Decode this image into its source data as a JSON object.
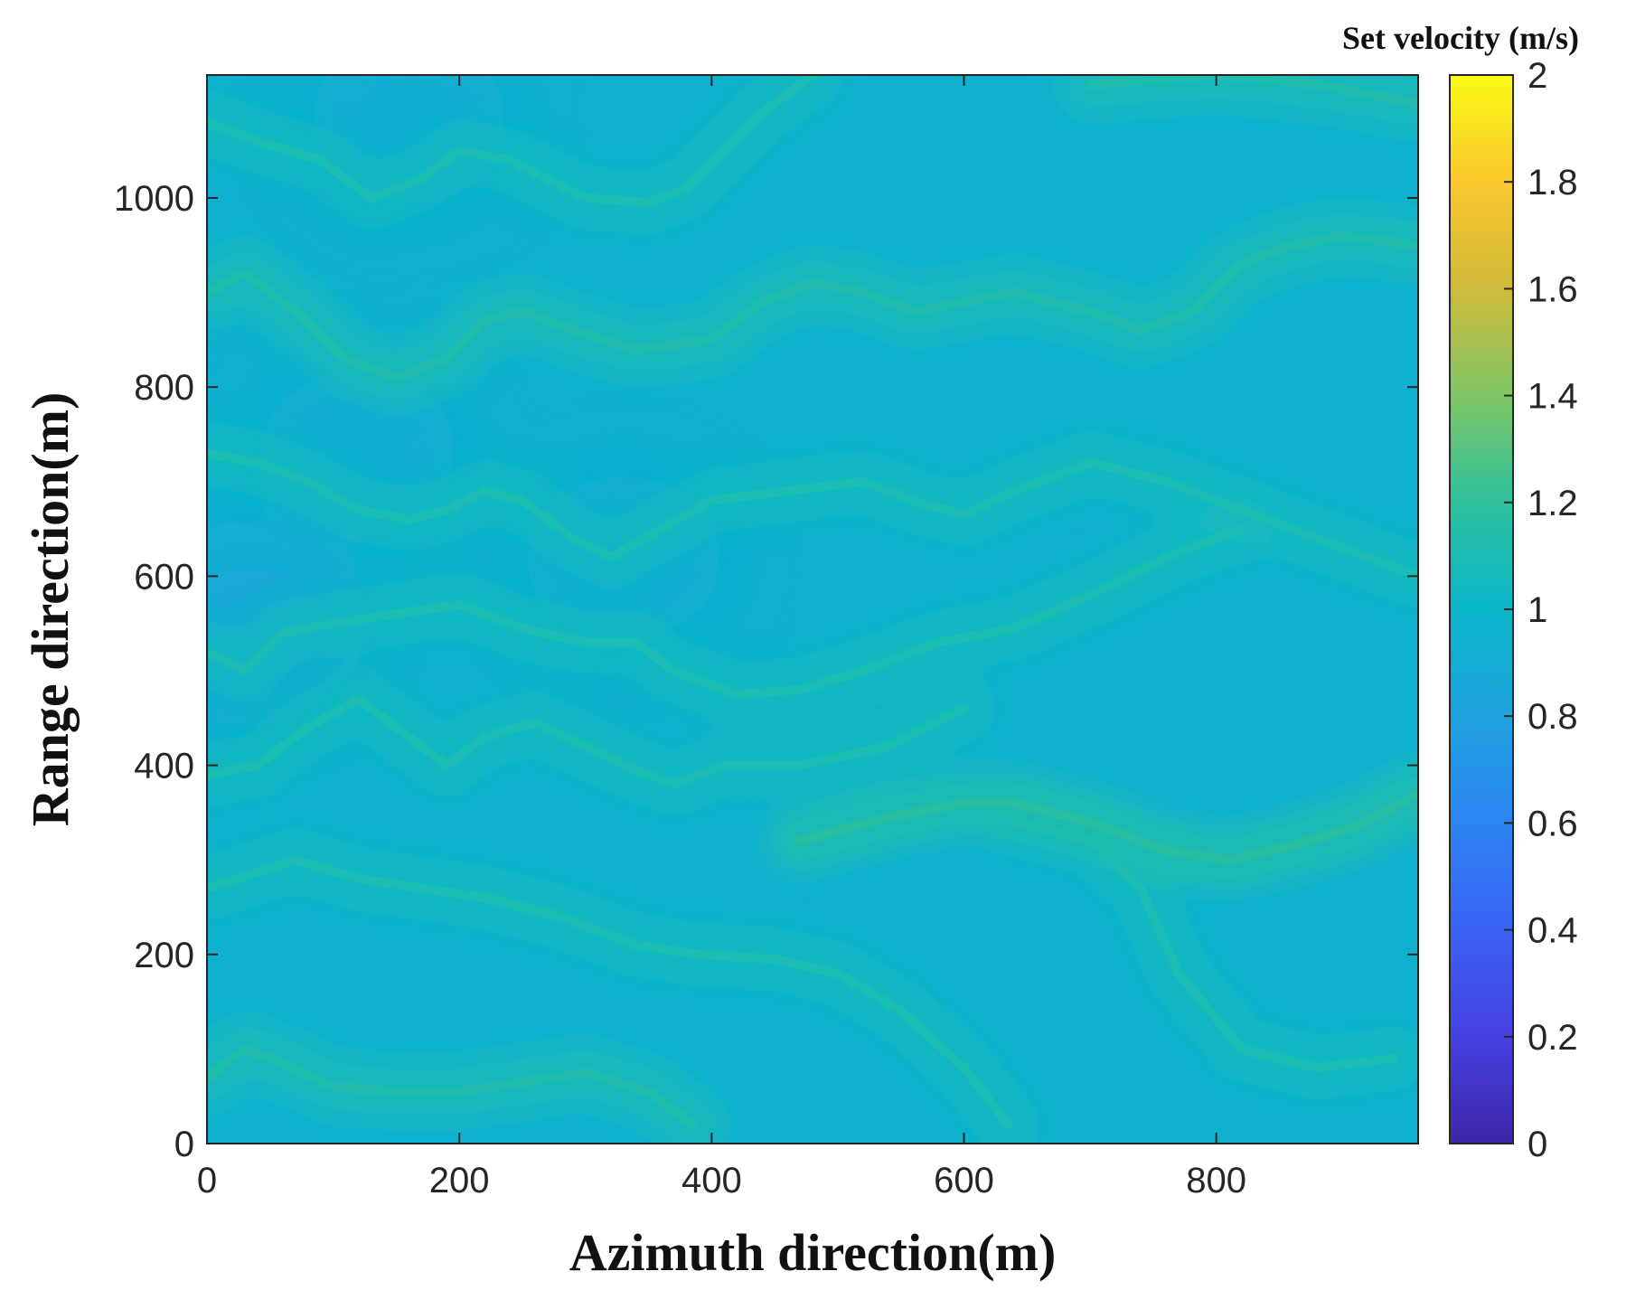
{
  "chart_data": {
    "type": "heatmap",
    "xlabel": "Azimuth direction(m)",
    "ylabel": "Range direction(m)",
    "xlim": [
      0,
      960
    ],
    "ylim": [
      0,
      1130
    ],
    "xticks": [
      {
        "value": 0,
        "label": "0"
      },
      {
        "value": 200,
        "label": "200"
      },
      {
        "value": 400,
        "label": "400"
      },
      {
        "value": 600,
        "label": "600"
      },
      {
        "value": 800,
        "label": "800"
      }
    ],
    "yticks": [
      {
        "value": 0,
        "label": "0"
      },
      {
        "value": 200,
        "label": "200"
      },
      {
        "value": 400,
        "label": "400"
      },
      {
        "value": 600,
        "label": "600"
      },
      {
        "value": 800,
        "label": "800"
      },
      {
        "value": 1000,
        "label": "1000"
      }
    ],
    "colorbar": {
      "title": "Set velocity (m/s)",
      "range": [
        0,
        2
      ],
      "colormap": "parula",
      "ticks": [
        {
          "value": 0,
          "label": "0"
        },
        {
          "value": 0.2,
          "label": "0.2"
        },
        {
          "value": 0.4,
          "label": "0.4"
        },
        {
          "value": 0.6,
          "label": "0.6"
        },
        {
          "value": 0.8,
          "label": "0.8"
        },
        {
          "value": 1,
          "label": "1"
        },
        {
          "value": 1.2,
          "label": "1.2"
        },
        {
          "value": 1.4,
          "label": "1.4"
        },
        {
          "value": 1.6,
          "label": "1.6"
        },
        {
          "value": 1.8,
          "label": "1.8"
        },
        {
          "value": 2,
          "label": "2"
        }
      ]
    },
    "background_value": 0.95,
    "field_range": [
      0.85,
      1.3
    ],
    "crest_lines": [
      {
        "value": 1.15,
        "points": [
          [
            0,
            70
          ],
          [
            30,
            100
          ],
          [
            60,
            85
          ],
          [
            100,
            60
          ],
          [
            150,
            55
          ],
          [
            200,
            55
          ],
          [
            250,
            65
          ],
          [
            300,
            75
          ],
          [
            350,
            55
          ],
          [
            385,
            20
          ]
        ]
      },
      {
        "value": 1.12,
        "points": [
          [
            0,
            270
          ],
          [
            70,
            300
          ],
          [
            120,
            280
          ],
          [
            170,
            270
          ],
          [
            220,
            260
          ],
          [
            280,
            240
          ],
          [
            340,
            210
          ],
          [
            390,
            200
          ],
          [
            450,
            195
          ],
          [
            500,
            180
          ],
          [
            550,
            140
          ],
          [
            600,
            80
          ],
          [
            635,
            20
          ]
        ]
      },
      {
        "value": 1.12,
        "points": [
          [
            940,
            90
          ],
          [
            880,
            80
          ],
          [
            820,
            100
          ],
          [
            770,
            180
          ],
          [
            740,
            270
          ],
          [
            700,
            320
          ],
          [
            640,
            340
          ]
        ]
      },
      {
        "value": 1.12,
        "points": [
          [
            0,
            390
          ],
          [
            40,
            400
          ],
          [
            80,
            440
          ],
          [
            120,
            470
          ],
          [
            160,
            430
          ],
          [
            190,
            400
          ],
          [
            220,
            430
          ],
          [
            260,
            445
          ],
          [
            300,
            420
          ],
          [
            340,
            395
          ],
          [
            370,
            380
          ],
          [
            410,
            400
          ],
          [
            470,
            400
          ],
          [
            540,
            420
          ],
          [
            600,
            460
          ]
        ]
      },
      {
        "value": 1.2,
        "points": [
          [
            470,
            320
          ],
          [
            540,
            345
          ],
          [
            600,
            360
          ],
          [
            640,
            360
          ],
          [
            700,
            340
          ],
          [
            760,
            310
          ],
          [
            810,
            300
          ],
          [
            860,
            315
          ],
          [
            910,
            335
          ],
          [
            960,
            370
          ]
        ]
      },
      {
        "value": 1.12,
        "points": [
          [
            0,
            520
          ],
          [
            30,
            500
          ],
          [
            60,
            540
          ],
          [
            100,
            550
          ],
          [
            150,
            560
          ],
          [
            200,
            570
          ],
          [
            250,
            545
          ],
          [
            300,
            530
          ],
          [
            340,
            530
          ],
          [
            370,
            500
          ],
          [
            420,
            475
          ],
          [
            470,
            480
          ],
          [
            520,
            500
          ],
          [
            580,
            530
          ],
          [
            640,
            545
          ],
          [
            700,
            580
          ],
          [
            760,
            620
          ],
          [
            820,
            650
          ]
        ]
      },
      {
        "value": 1.12,
        "points": [
          [
            0,
            730
          ],
          [
            40,
            720
          ],
          [
            80,
            700
          ],
          [
            120,
            670
          ],
          [
            160,
            660
          ],
          [
            190,
            670
          ],
          [
            220,
            690
          ],
          [
            250,
            680
          ],
          [
            290,
            640
          ],
          [
            320,
            620
          ],
          [
            360,
            650
          ],
          [
            400,
            680
          ],
          [
            460,
            690
          ],
          [
            520,
            700
          ],
          [
            560,
            680
          ],
          [
            600,
            665
          ],
          [
            640,
            690
          ],
          [
            700,
            720
          ],
          [
            760,
            700
          ],
          [
            840,
            660
          ],
          [
            900,
            630
          ],
          [
            960,
            600
          ]
        ]
      },
      {
        "value": 1.15,
        "points": [
          [
            0,
            900
          ],
          [
            30,
            920
          ],
          [
            70,
            880
          ],
          [
            110,
            830
          ],
          [
            150,
            810
          ],
          [
            190,
            830
          ],
          [
            220,
            870
          ],
          [
            250,
            880
          ],
          [
            290,
            860
          ],
          [
            340,
            840
          ],
          [
            400,
            850
          ],
          [
            440,
            890
          ],
          [
            480,
            910
          ],
          [
            520,
            900
          ],
          [
            560,
            880
          ],
          [
            600,
            890
          ],
          [
            640,
            900
          ],
          [
            700,
            880
          ],
          [
            740,
            860
          ],
          [
            780,
            880
          ],
          [
            820,
            930
          ],
          [
            860,
            950
          ],
          [
            900,
            960
          ],
          [
            960,
            950
          ]
        ]
      },
      {
        "value": 1.12,
        "points": [
          [
            0,
            1080
          ],
          [
            40,
            1060
          ],
          [
            90,
            1040
          ],
          [
            130,
            1000
          ],
          [
            170,
            1020
          ],
          [
            200,
            1050
          ],
          [
            240,
            1040
          ],
          [
            270,
            1020
          ],
          [
            300,
            1000
          ],
          [
            350,
            995
          ],
          [
            380,
            1010
          ],
          [
            410,
            1050
          ],
          [
            440,
            1090
          ],
          [
            480,
            1130
          ]
        ]
      },
      {
        "value": 1.15,
        "points": [
          [
            700,
            1120
          ],
          [
            800,
            1130
          ],
          [
            880,
            1120
          ],
          [
            960,
            1100
          ]
        ]
      }
    ],
    "low_spots": [
      {
        "x": 30,
        "y": 550,
        "value": 0.85
      },
      {
        "x": 160,
        "y": 1080,
        "value": 0.9
      },
      {
        "x": 120,
        "y": 730,
        "value": 0.9
      },
      {
        "x": 330,
        "y": 620,
        "value": 0.9
      }
    ]
  }
}
